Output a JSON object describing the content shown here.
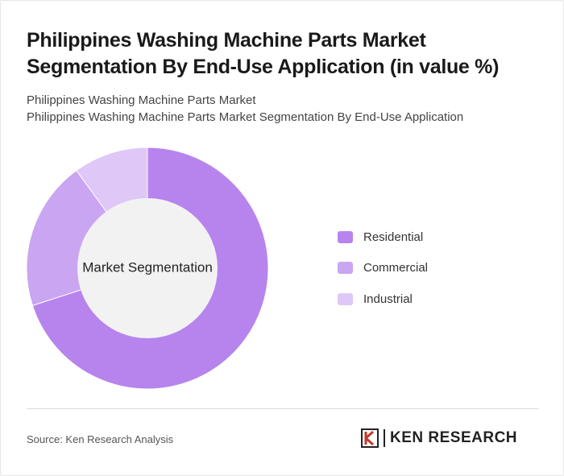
{
  "header": {
    "title": "Philippines Washing Machine Parts Market Segmentation By End-Use Application (in value %)",
    "subtitle_line1": "Philippines Washing Machine Parts Market",
    "subtitle_line2": "Philippines Washing Machine Parts Market Segmentation By End-Use Application"
  },
  "chart_data": {
    "type": "pie",
    "variant": "donut",
    "center_label": "Market Segmentation",
    "categories": [
      "Residential",
      "Commercial",
      "Industrial"
    ],
    "values": [
      70,
      20,
      10
    ],
    "colors": [
      "#b784ee",
      "#caa5f2",
      "#dfc7f8"
    ],
    "center_color": "#f2f2f2",
    "legend_placement": "right"
  },
  "footer": {
    "source": "Source: Ken Research Analysis",
    "logo_text": "KEN RESEARCH"
  }
}
